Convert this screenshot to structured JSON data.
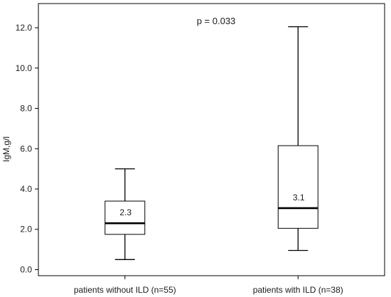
{
  "chart_data": {
    "type": "boxplot",
    "title": "",
    "annotation": "p = 0.033",
    "xlabel": "",
    "ylabel": "IgM,g/l",
    "ylim": [
      -0.3,
      13.2
    ],
    "yticks": [
      0.0,
      2.0,
      4.0,
      6.0,
      8.0,
      10.0,
      12.0
    ],
    "ytick_labels": [
      "0.0",
      "2.0",
      "4.0",
      "6.0",
      "8.0",
      "10.0",
      "12.0"
    ],
    "grid": false,
    "categories": [
      "patients without ILD (n=55)",
      "patients with ILD (n=38)"
    ],
    "boxes": [
      {
        "min": 0.5,
        "q1": 1.75,
        "median": 2.3,
        "q3": 3.4,
        "max": 5.0,
        "median_label": "2.3"
      },
      {
        "min": 0.95,
        "q1": 2.05,
        "median": 3.05,
        "q3": 6.15,
        "max": 12.05,
        "median_label": "3.1"
      }
    ]
  }
}
